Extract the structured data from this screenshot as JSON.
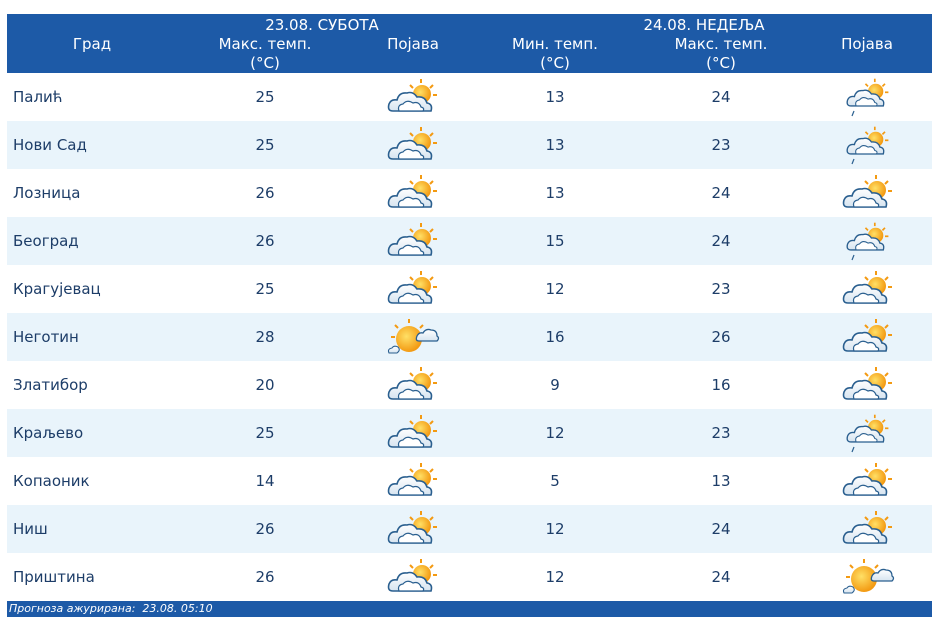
{
  "header": {
    "day1": "23.08. СУБОТА",
    "day2": "24.08. НЕДЕЉА",
    "columns": [
      "Град",
      "Макс. темп. (°C)",
      "Појава",
      "Мин. темп. (°C)",
      "Макс. темп. (°C)",
      "Појава"
    ]
  },
  "table": {
    "rows": [
      [
        "Палић",
        25,
        13,
        24
      ],
      [
        "Нови Сад",
        25,
        13,
        23
      ],
      [
        "Лозница",
        26,
        13,
        24
      ],
      [
        "Београд",
        26,
        15,
        24
      ],
      [
        "Крагујевац",
        25,
        12,
        23
      ],
      [
        "Неготин",
        28,
        16,
        26
      ],
      [
        "Златибор",
        20,
        9,
        16
      ],
      [
        "Краљево",
        25,
        12,
        23
      ],
      [
        "Копаоник",
        14,
        5,
        13
      ],
      [
        "Ниш",
        26,
        12,
        24
      ],
      [
        "Приштина",
        26,
        12,
        24
      ]
    ]
  },
  "footer": {
    "updated": "Прогноза ажурирана:  23.08. 05:10"
  }
}
